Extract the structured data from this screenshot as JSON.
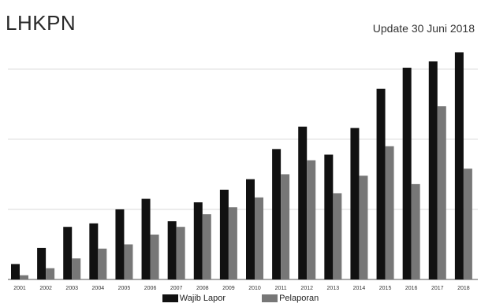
{
  "header": {
    "title": "LHKPN",
    "subtitle": "Update 30 Juni 2018"
  },
  "colors": {
    "series1": "#111111",
    "series2": "#777777",
    "grid": "#d9d9d9",
    "axis": "#555555"
  },
  "chart_data": {
    "type": "bar",
    "title": "LHKPN",
    "subtitle": "Update 30 Juni 2018",
    "xlabel": "",
    "ylabel": "",
    "ylim": [
      0,
      320
    ],
    "grid": true,
    "legend": "bottom",
    "categories": [
      "2001",
      "2002",
      "2003",
      "2004",
      "2005",
      "2006",
      "2007",
      "2008",
      "2009",
      "2010",
      "2011",
      "2012",
      "2013",
      "2014",
      "2015",
      "2016",
      "2017",
      "2018"
    ],
    "series": [
      {
        "name": "Wajib Lapor",
        "values": [
          22,
          45,
          75,
          80,
          100,
          115,
          83,
          110,
          128,
          143,
          186,
          218,
          178,
          216,
          272,
          302,
          311,
          324
        ]
      },
      {
        "name": "Pelaporan",
        "values": [
          6,
          16,
          30,
          44,
          50,
          64,
          75,
          93,
          103,
          117,
          150,
          170,
          123,
          148,
          190,
          136,
          247,
          158
        ]
      }
    ]
  }
}
